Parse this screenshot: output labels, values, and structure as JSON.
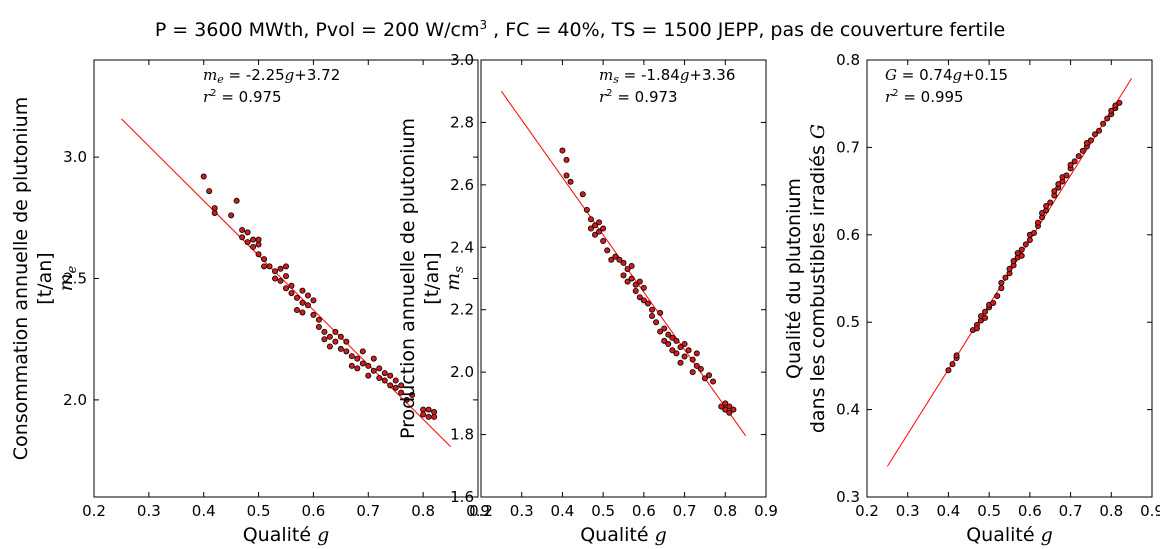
{
  "figure": {
    "title": {
      "part1": "P = 3600 MWth, Pvol = 200 W/cm",
      "sup": "3",
      "part2": " , FC = 40%, TS = 1500 JEPP, pas de couverture fertile"
    }
  },
  "colors": {
    "marker": "#d11a1a",
    "marker_edge": "#000000",
    "fit_line": "#ff0000",
    "axes": "#000000"
  },
  "chart_data": [
    {
      "type": "scatter",
      "xlabel": {
        "text": "Qualité ",
        "var": "g"
      },
      "ylabel_line1": "Consommation annuelle de plutonium",
      "ylabel_line2": "[t/an]",
      "ylabel_var": "m",
      "ylabel_var_sub": "e",
      "xlim": [
        0.2,
        0.9
      ],
      "ylim": [
        1.6,
        3.4
      ],
      "xticks": [
        "0.2",
        "0.3",
        "0.4",
        "0.5",
        "0.6",
        "0.7",
        "0.8",
        "0.9"
      ],
      "yticks": [
        "2.0",
        "2.5",
        "3.0"
      ],
      "ytick_values": [
        2.0,
        2.5,
        3.0
      ],
      "fit": {
        "slope": -2.25,
        "intercept": 3.72,
        "x_range": [
          0.25,
          0.85
        ]
      },
      "annotation": {
        "var": "m",
        "sub": "e",
        "eq_rest": " = -2.25",
        "g": "g",
        "const": "+3.72",
        "r_var": "r",
        "r_sup": "2",
        "r_val": " = 0.975"
      },
      "points": [
        [
          0.4,
          2.92
        ],
        [
          0.41,
          2.86
        ],
        [
          0.42,
          2.79
        ],
        [
          0.42,
          2.77
        ],
        [
          0.45,
          2.76
        ],
        [
          0.46,
          2.82
        ],
        [
          0.47,
          2.7
        ],
        [
          0.47,
          2.67
        ],
        [
          0.48,
          2.65
        ],
        [
          0.48,
          2.69
        ],
        [
          0.49,
          2.66
        ],
        [
          0.49,
          2.63
        ],
        [
          0.5,
          2.64
        ],
        [
          0.5,
          2.6
        ],
        [
          0.5,
          2.66
        ],
        [
          0.51,
          2.58
        ],
        [
          0.51,
          2.55
        ],
        [
          0.52,
          2.55
        ],
        [
          0.53,
          2.53
        ],
        [
          0.53,
          2.5
        ],
        [
          0.54,
          2.54
        ],
        [
          0.54,
          2.49
        ],
        [
          0.55,
          2.55
        ],
        [
          0.55,
          2.51
        ],
        [
          0.55,
          2.46
        ],
        [
          0.56,
          2.47
        ],
        [
          0.56,
          2.44
        ],
        [
          0.57,
          2.37
        ],
        [
          0.57,
          2.42
        ],
        [
          0.58,
          2.45
        ],
        [
          0.58,
          2.4
        ],
        [
          0.58,
          2.36
        ],
        [
          0.59,
          2.43
        ],
        [
          0.59,
          2.39
        ],
        [
          0.6,
          2.35
        ],
        [
          0.6,
          2.41
        ],
        [
          0.61,
          2.33
        ],
        [
          0.61,
          2.3
        ],
        [
          0.62,
          2.28
        ],
        [
          0.62,
          2.25
        ],
        [
          0.63,
          2.26
        ],
        [
          0.63,
          2.22
        ],
        [
          0.64,
          2.28
        ],
        [
          0.64,
          2.24
        ],
        [
          0.65,
          2.21
        ],
        [
          0.65,
          2.26
        ],
        [
          0.66,
          2.2
        ],
        [
          0.66,
          2.24
        ],
        [
          0.67,
          2.18
        ],
        [
          0.67,
          2.14
        ],
        [
          0.68,
          2.13
        ],
        [
          0.68,
          2.17
        ],
        [
          0.69,
          2.2
        ],
        [
          0.69,
          2.15
        ],
        [
          0.7,
          2.14
        ],
        [
          0.7,
          2.1
        ],
        [
          0.71,
          2.12
        ],
        [
          0.71,
          2.17
        ],
        [
          0.72,
          2.09
        ],
        [
          0.72,
          2.13
        ],
        [
          0.73,
          2.08
        ],
        [
          0.73,
          2.11
        ],
        [
          0.74,
          2.1
        ],
        [
          0.74,
          2.06
        ],
        [
          0.75,
          2.05
        ],
        [
          0.75,
          2.08
        ],
        [
          0.76,
          2.06
        ],
        [
          0.76,
          2.03
        ],
        [
          0.77,
          2.0
        ],
        [
          0.78,
          2.02
        ],
        [
          0.8,
          1.96
        ],
        [
          0.8,
          1.94
        ],
        [
          0.81,
          1.93
        ],
        [
          0.81,
          1.96
        ],
        [
          0.82,
          1.95
        ],
        [
          0.82,
          1.93
        ]
      ]
    },
    {
      "type": "scatter",
      "xlabel": {
        "text": "Qualité ",
        "var": "g"
      },
      "ylabel_line1": "Production annuelle de plutonium",
      "ylabel_line2": "[t/an]",
      "ylabel_var": "m",
      "ylabel_var_sub": "s",
      "xlim": [
        0.2,
        0.9
      ],
      "ylim": [
        1.6,
        3.0
      ],
      "xticks": [
        "0.2",
        "0.3",
        "0.4",
        "0.5",
        "0.6",
        "0.7",
        "0.8",
        "0.9"
      ],
      "yticks": [
        "1.6",
        "1.8",
        "2.0",
        "2.2",
        "2.4",
        "2.6",
        "2.8",
        "3.0"
      ],
      "ytick_values": [
        1.6,
        1.8,
        2.0,
        2.2,
        2.4,
        2.6,
        2.8,
        3.0
      ],
      "fit": {
        "slope": -1.84,
        "intercept": 3.36,
        "x_range": [
          0.25,
          0.85
        ]
      },
      "annotation": {
        "var": "m",
        "sub": "s",
        "eq_rest": " = -1.84",
        "g": "g",
        "const": "+3.36",
        "r_var": "r",
        "r_sup": "2",
        "r_val": " = 0.973"
      },
      "points": [
        [
          0.4,
          2.71
        ],
        [
          0.41,
          2.68
        ],
        [
          0.41,
          2.63
        ],
        [
          0.42,
          2.61
        ],
        [
          0.45,
          2.57
        ],
        [
          0.46,
          2.52
        ],
        [
          0.47,
          2.49
        ],
        [
          0.47,
          2.46
        ],
        [
          0.48,
          2.47
        ],
        [
          0.48,
          2.44
        ],
        [
          0.49,
          2.48
        ],
        [
          0.49,
          2.45
        ],
        [
          0.5,
          2.42
        ],
        [
          0.5,
          2.46
        ],
        [
          0.51,
          2.39
        ],
        [
          0.52,
          2.36
        ],
        [
          0.53,
          2.37
        ],
        [
          0.54,
          2.36
        ],
        [
          0.55,
          2.35
        ],
        [
          0.55,
          2.31
        ],
        [
          0.56,
          2.33
        ],
        [
          0.56,
          2.29
        ],
        [
          0.57,
          2.34
        ],
        [
          0.57,
          2.3
        ],
        [
          0.58,
          2.28
        ],
        [
          0.58,
          2.26
        ],
        [
          0.59,
          2.29
        ],
        [
          0.59,
          2.24
        ],
        [
          0.6,
          2.27
        ],
        [
          0.6,
          2.23
        ],
        [
          0.61,
          2.22
        ],
        [
          0.62,
          2.18
        ],
        [
          0.62,
          2.2
        ],
        [
          0.63,
          2.16
        ],
        [
          0.64,
          2.19
        ],
        [
          0.64,
          2.13
        ],
        [
          0.65,
          2.1
        ],
        [
          0.65,
          2.14
        ],
        [
          0.66,
          2.12
        ],
        [
          0.66,
          2.09
        ],
        [
          0.67,
          2.07
        ],
        [
          0.67,
          2.11
        ],
        [
          0.68,
          2.1
        ],
        [
          0.68,
          2.06
        ],
        [
          0.69,
          2.08
        ],
        [
          0.69,
          2.03
        ],
        [
          0.7,
          2.05
        ],
        [
          0.7,
          2.09
        ],
        [
          0.71,
          2.07
        ],
        [
          0.72,
          2.04
        ],
        [
          0.72,
          2.0
        ],
        [
          0.73,
          2.06
        ],
        [
          0.73,
          2.02
        ],
        [
          0.74,
          2.01
        ],
        [
          0.75,
          1.98
        ],
        [
          0.76,
          1.99
        ],
        [
          0.77,
          1.97
        ],
        [
          0.79,
          1.89
        ],
        [
          0.8,
          1.88
        ],
        [
          0.8,
          1.9
        ],
        [
          0.81,
          1.89
        ],
        [
          0.81,
          1.87
        ],
        [
          0.82,
          1.88
        ]
      ]
    },
    {
      "type": "scatter",
      "xlabel": {
        "text": "Qualité ",
        "var": "g"
      },
      "ylabel_line1": "Qualité du plutonium",
      "ylabel_line2": "dans les combustibles irradiés ",
      "ylabel_var": "G",
      "ylabel_var_sub": "",
      "xlim": [
        0.2,
        0.9
      ],
      "ylim": [
        0.3,
        0.8
      ],
      "xticks": [
        "0.2",
        "0.3",
        "0.4",
        "0.5",
        "0.6",
        "0.7",
        "0.8",
        "0.9"
      ],
      "yticks": [
        "0.3",
        "0.4",
        "0.5",
        "0.6",
        "0.7",
        "0.8"
      ],
      "ytick_values": [
        0.3,
        0.4,
        0.5,
        0.6,
        0.7,
        0.8
      ],
      "fit": {
        "slope": 0.74,
        "intercept": 0.15,
        "x_range": [
          0.25,
          0.85
        ]
      },
      "annotation": {
        "var": "G",
        "sub": "",
        "eq_rest": " = 0.74",
        "g": "g",
        "const": "+0.15",
        "r_var": "r",
        "r_sup": "2",
        "r_val": " = 0.995"
      },
      "points": [
        [
          0.4,
          0.445
        ],
        [
          0.41,
          0.452
        ],
        [
          0.42,
          0.459
        ],
        [
          0.42,
          0.462
        ],
        [
          0.46,
          0.491
        ],
        [
          0.47,
          0.497
        ],
        [
          0.47,
          0.493
        ],
        [
          0.48,
          0.502
        ],
        [
          0.48,
          0.507
        ],
        [
          0.49,
          0.512
        ],
        [
          0.49,
          0.505
        ],
        [
          0.5,
          0.517
        ],
        [
          0.5,
          0.52
        ],
        [
          0.51,
          0.522
        ],
        [
          0.52,
          0.53
        ],
        [
          0.53,
          0.539
        ],
        [
          0.53,
          0.545
        ],
        [
          0.54,
          0.551
        ],
        [
          0.55,
          0.556
        ],
        [
          0.55,
          0.561
        ],
        [
          0.56,
          0.565
        ],
        [
          0.56,
          0.57
        ],
        [
          0.57,
          0.574
        ],
        [
          0.57,
          0.579
        ],
        [
          0.58,
          0.576
        ],
        [
          0.58,
          0.583
        ],
        [
          0.59,
          0.589
        ],
        [
          0.6,
          0.594
        ],
        [
          0.6,
          0.6
        ],
        [
          0.61,
          0.602
        ],
        [
          0.62,
          0.61
        ],
        [
          0.62,
          0.614
        ],
        [
          0.63,
          0.62
        ],
        [
          0.63,
          0.625
        ],
        [
          0.64,
          0.628
        ],
        [
          0.64,
          0.633
        ],
        [
          0.65,
          0.637
        ],
        [
          0.66,
          0.645
        ],
        [
          0.66,
          0.65
        ],
        [
          0.67,
          0.654
        ],
        [
          0.67,
          0.658
        ],
        [
          0.68,
          0.661
        ],
        [
          0.68,
          0.666
        ],
        [
          0.69,
          0.668
        ],
        [
          0.7,
          0.676
        ],
        [
          0.7,
          0.68
        ],
        [
          0.71,
          0.684
        ],
        [
          0.72,
          0.69
        ],
        [
          0.73,
          0.696
        ],
        [
          0.74,
          0.701
        ],
        [
          0.74,
          0.705
        ],
        [
          0.75,
          0.708
        ],
        [
          0.76,
          0.715
        ],
        [
          0.77,
          0.719
        ],
        [
          0.78,
          0.727
        ],
        [
          0.79,
          0.733
        ],
        [
          0.8,
          0.738
        ],
        [
          0.8,
          0.742
        ],
        [
          0.81,
          0.745
        ],
        [
          0.81,
          0.748
        ],
        [
          0.82,
          0.751
        ]
      ]
    }
  ]
}
